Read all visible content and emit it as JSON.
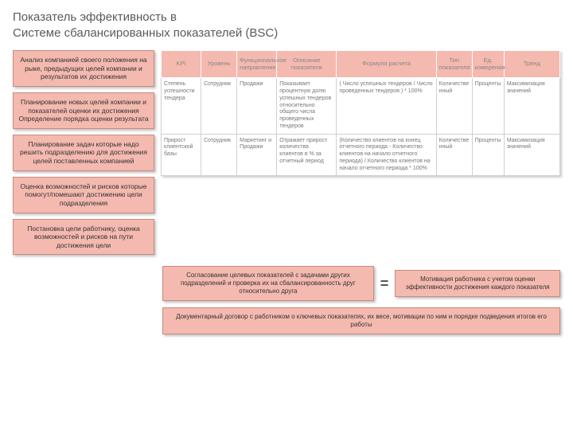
{
  "title_line1": "Показатель эффективность в",
  "title_line2": "Системе сбалансированных показателей (BSC)",
  "left_boxes": [
    "Анализ компанией своего положения на рыке, предыдущих целей компании и результатов их достижения",
    "Планирование новых целей компании и показателей оценки их достижения\nОпределение порядка оценки результата",
    "Планирование задач которые надо решить подразделению для достижения целей поставленных компанией",
    "Оценка возможностей и рисков которые помогут/помешают достижению цели подразделения",
    "Постановка цели работнику, оценка возможностей и рисков на пути достижения цели"
  ],
  "table": {
    "col_widths": [
      "10%",
      "9%",
      "10%",
      "15%",
      "25%",
      "9%",
      "8%",
      "14%"
    ],
    "header": [
      "KPI",
      "Уровень",
      "Функциональное направление",
      "Описание показателя",
      "Формула расчета",
      "Тип показателя",
      "Ед. измерения",
      "Тренд"
    ],
    "rows": [
      [
        "Степень успешности тендера",
        "Сотрудник",
        "Продажи",
        "Показывает процентную долю успешных тендеров относительно общего числа проведенных тендеров",
        "( Число успешных тендеров / Число проведенных тендеров ) * 100%",
        "Количественный",
        "Проценты",
        "Максимизация значений"
      ],
      [
        "Прирост клиентской базы",
        "Сотрудник",
        "Маркетинг и Продажи",
        "Отражает прирост количества клиентов в % за отчетный период",
        "(Количество клиентов на конец отчетного периода - Количество клиентов на начало отчетного периода) / Количество клиентов на начало отчетного периода * 100%",
        "Количественный",
        "Проценты",
        "Максимизация значений"
      ]
    ]
  },
  "bottom": {
    "left": "Согласование целевых показателей с задачами других подразделений и проверка их на сбалансированность друг относительно друга",
    "right": "Мотивация работника с учетом оценки эффективности достижения каждого показателя",
    "full": "Документарный договор с работником о ключевых показателях, их весе, мотивации по ним и порядке подведения итогов его работы",
    "equals": "="
  },
  "colors": {
    "box_bg": "#f4b9af",
    "box_border": "#c98a7e",
    "header_text": "#888888",
    "cell_text": "#777777",
    "page_bg": "#ffffff",
    "title_color": "#5a5a5a"
  }
}
